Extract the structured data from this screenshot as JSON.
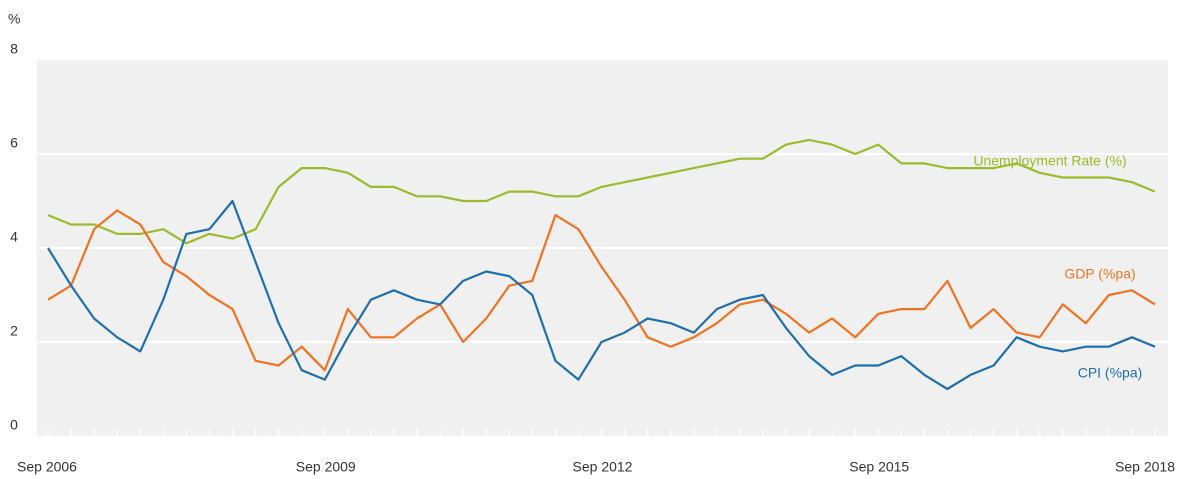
{
  "chart_data": {
    "type": "line",
    "y_label": "%",
    "categories": [
      "Sep 2006",
      null,
      null,
      null,
      null,
      null,
      null,
      null,
      null,
      null,
      null,
      null,
      "Sep 2009",
      null,
      null,
      null,
      null,
      null,
      null,
      null,
      null,
      null,
      null,
      null,
      "Sep 2012",
      null,
      null,
      null,
      null,
      null,
      null,
      null,
      null,
      null,
      null,
      null,
      "Sep 2015",
      null,
      null,
      null,
      null,
      null,
      null,
      null,
      null,
      null,
      null,
      null,
      "Sep 2018"
    ],
    "series": [
      {
        "name": "Unemployment Rate (%)",
        "color": "#9bbb2c",
        "values": [
          4.7,
          4.5,
          4.5,
          4.3,
          4.3,
          4.4,
          4.1,
          4.3,
          4.2,
          4.4,
          5.3,
          5.7,
          5.7,
          5.6,
          5.3,
          5.3,
          5.1,
          5.1,
          5.0,
          5.0,
          5.2,
          5.2,
          5.1,
          5.1,
          5.3,
          5.4,
          5.5,
          5.6,
          5.7,
          5.8,
          5.9,
          5.9,
          6.2,
          6.3,
          6.2,
          6.0,
          6.2,
          5.8,
          5.8,
          5.7,
          5.7,
          5.7,
          5.8,
          5.6,
          5.5,
          5.5,
          5.5,
          5.4,
          5.2
        ]
      },
      {
        "name": "GDP (%pa)",
        "color": "#f07322",
        "values": [
          2.9,
          3.2,
          4.4,
          4.8,
          4.5,
          3.7,
          3.4,
          3.0,
          2.7,
          1.6,
          1.5,
          1.9,
          1.4,
          2.7,
          2.1,
          2.1,
          2.5,
          2.8,
          2.0,
          2.5,
          3.2,
          3.3,
          4.7,
          4.4,
          3.6,
          2.9,
          2.1,
          1.9,
          2.1,
          2.4,
          2.8,
          2.9,
          2.6,
          2.2,
          2.5,
          2.1,
          2.6,
          2.7,
          2.7,
          3.3,
          2.3,
          2.7,
          2.2,
          2.1,
          2.8,
          2.4,
          3.0,
          3.1,
          2.8
        ]
      },
      {
        "name": "CPI (%pa)",
        "color": "#1f6eb0",
        "values": [
          4.0,
          3.2,
          2.5,
          2.1,
          1.8,
          2.9,
          4.3,
          4.4,
          5.0,
          3.7,
          2.4,
          1.4,
          1.2,
          2.1,
          2.9,
          3.1,
          2.9,
          2.8,
          3.3,
          3.5,
          3.4,
          3.0,
          1.6,
          1.2,
          2.0,
          2.2,
          2.5,
          2.4,
          2.2,
          2.7,
          2.9,
          3.0,
          2.3,
          1.7,
          1.3,
          1.5,
          1.5,
          1.7,
          1.3,
          1.0,
          1.3,
          1.5,
          2.1,
          1.9,
          1.8,
          1.9,
          1.9,
          2.1,
          1.9
        ]
      }
    ],
    "ylim": [
      0,
      8
    ],
    "yticks": [
      0,
      2,
      4,
      6,
      8
    ],
    "grid": true
  }
}
